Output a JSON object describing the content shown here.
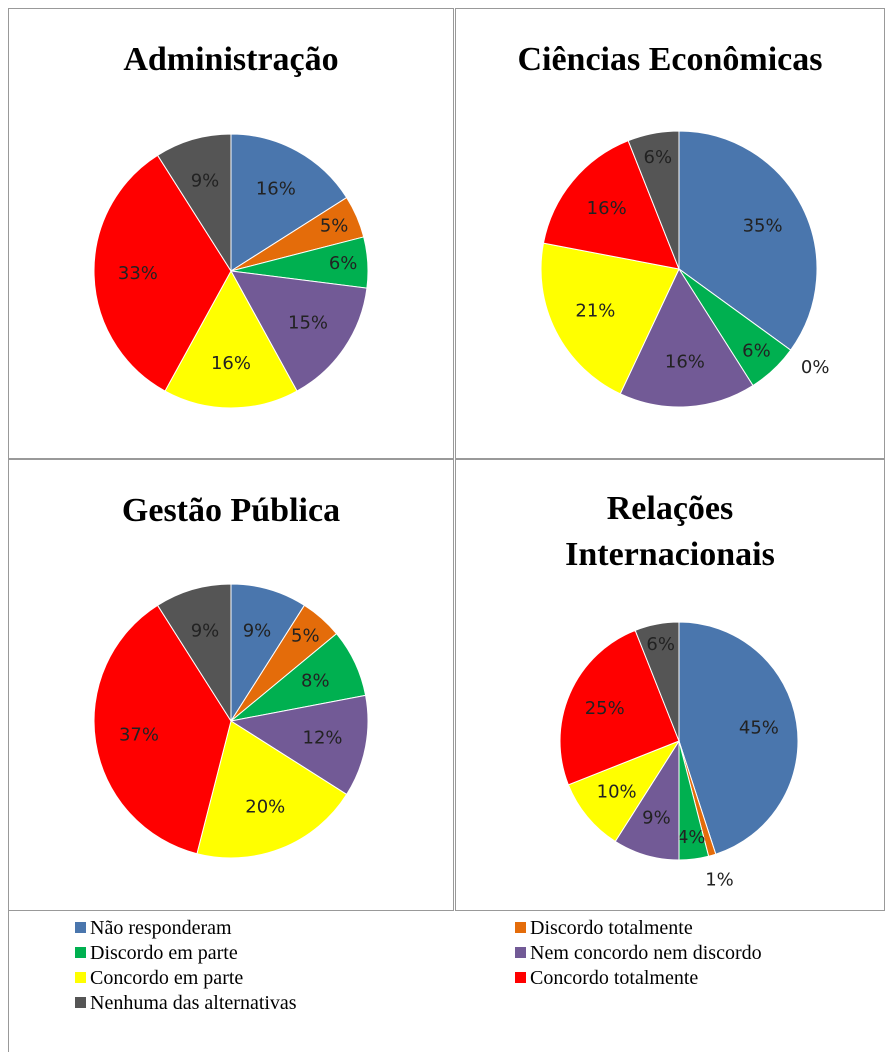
{
  "chart_data": [
    {
      "type": "pie",
      "title": "Administração",
      "values": [
        16,
        5,
        6,
        15,
        16,
        33,
        9
      ],
      "value_labels": [
        "16%",
        "5%",
        "6%",
        "15%",
        "16%",
        "33%",
        "9%"
      ]
    },
    {
      "type": "pie",
      "title": "Ciências Econômicas",
      "values": [
        35,
        0,
        6,
        16,
        21,
        16,
        6
      ],
      "value_labels": [
        "35%",
        "0%",
        "6%",
        "16%",
        "21%",
        "16%",
        "6%"
      ]
    },
    {
      "type": "pie",
      "title": "Gestão Pública",
      "values": [
        9,
        5,
        8,
        12,
        20,
        37,
        9
      ],
      "value_labels": [
        "9%",
        "5%",
        "8%",
        "12%",
        "20%",
        "37%",
        "9%"
      ]
    },
    {
      "type": "pie",
      "title": "Relações Internacionais",
      "values": [
        45,
        1,
        4,
        9,
        10,
        25,
        6
      ],
      "value_labels": [
        "45%",
        "1%",
        "4%",
        "9%",
        "10%",
        "25%",
        "6%"
      ]
    }
  ],
  "legend": {
    "labels": [
      "Não responderam",
      "Discordo totalmente",
      "Discordo em parte",
      "Nem concordo nem discordo",
      "Concordo em parte",
      "Concordo totalmente",
      "Nenhuma das alternativas"
    ],
    "colors": [
      "#4a76ad",
      "#e46c0a",
      "#00b050",
      "#725a96",
      "#ffff00",
      "#ff0000",
      "#555555"
    ]
  }
}
